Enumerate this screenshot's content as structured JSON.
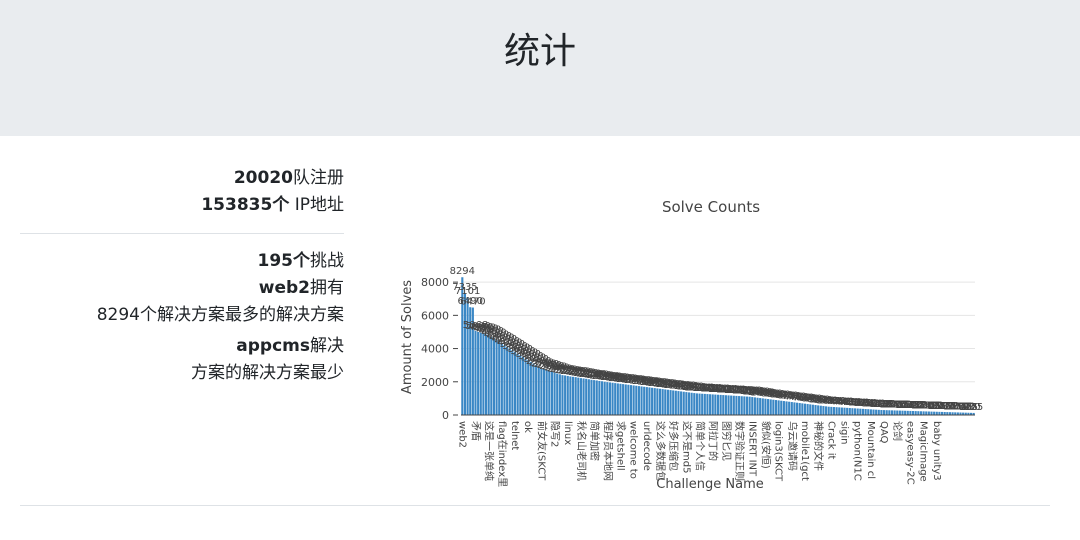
{
  "header": {
    "title": "统计"
  },
  "stats": {
    "teams": "20020",
    "teams_label": "队注册",
    "ips": "153835个",
    "ips_label": "IP地址",
    "challenges": "195个",
    "challenges_label": "挑战",
    "most": "web2",
    "most_label": "拥有",
    "most_detail": "8294个解决方案最多的解决方案",
    "least": "appcms",
    "least_label": "解决",
    "least_detail": "方案的解决方案最少"
  },
  "chart_data": {
    "type": "bar",
    "title": "Solve Counts",
    "ylabel": "Amount of Solves",
    "xlabel": "Challenge Name",
    "color": "#3a87c5",
    "ylim": [
      0,
      8730
    ],
    "yticks": [
      0,
      2000,
      4000,
      6000,
      8000
    ],
    "grid": true,
    "categories": [
      "web2",
      null,
      null,
      null,
      null,
      "矛盾",
      null,
      null,
      null,
      null,
      "这是一张单纯",
      null,
      null,
      null,
      null,
      "flag在index里",
      null,
      null,
      null,
      null,
      "telnet",
      null,
      null,
      null,
      null,
      "ok",
      null,
      null,
      null,
      null,
      "前女友(SKCT",
      null,
      null,
      null,
      null,
      "隐写2",
      null,
      null,
      null,
      null,
      "linux",
      null,
      null,
      null,
      null,
      "秋名山老司机",
      null,
      null,
      null,
      null,
      "简单加密",
      null,
      null,
      null,
      null,
      "程序员本地网",
      null,
      null,
      null,
      null,
      "求getshell",
      null,
      null,
      null,
      null,
      "welcome to",
      null,
      null,
      null,
      null,
      "urldecode",
      null,
      null,
      null,
      null,
      "这么多数据包",
      null,
      null,
      null,
      null,
      "好多压缩包",
      null,
      null,
      null,
      null,
      "这不是md5",
      null,
      null,
      null,
      null,
      "简单个人信",
      null,
      null,
      null,
      null,
      "阿拉丁的",
      null,
      null,
      null,
      null,
      "图穷匕见",
      null,
      null,
      null,
      null,
      "数字验证正则",
      null,
      null,
      null,
      null,
      "INSERT INT",
      null,
      null,
      null,
      null,
      "貌似(安恒)",
      null,
      null,
      null,
      null,
      "login3(SKCT",
      null,
      null,
      null,
      null,
      "乌云邀请码",
      null,
      null,
      null,
      null,
      "mobile1(gct",
      null,
      null,
      null,
      null,
      "神秘的文件",
      null,
      null,
      null,
      null,
      "Crack it",
      null,
      null,
      null,
      null,
      "sigin",
      null,
      null,
      null,
      null,
      "python(N1C",
      null,
      null,
      null,
      null,
      "Mountain cl",
      null,
      null,
      null,
      null,
      "QAQ",
      null,
      null,
      null,
      null,
      "论剑",
      null,
      null,
      null,
      null,
      "easyeasy-2C",
      null,
      null,
      null,
      null,
      "MagicImage",
      null,
      null,
      null,
      null,
      "baby unity3",
      null,
      null,
      null,
      null,
      null,
      null,
      null,
      null,
      null,
      null,
      null,
      null,
      null,
      null
    ],
    "values": [
      8294,
      7335,
      7101,
      6490,
      6470,
      5068,
      5000,
      4950,
      4900,
      4850,
      4800,
      4700,
      4600,
      4500,
      4400,
      4300,
      4200,
      4100,
      4000,
      3900,
      3800,
      3700,
      3600,
      3500,
      3400,
      3300,
      3200,
      3100,
      3000,
      2900,
      2800,
      2750,
      2700,
      2650,
      2600,
      2550,
      2500,
      2450,
      2400,
      2380,
      2350,
      2320,
      2300,
      2280,
      2250,
      2220,
      2200,
      2180,
      2150,
      2120,
      2100,
      2080,
      2050,
      2030,
      2000,
      1980,
      1960,
      1940,
      1920,
      1900,
      1880,
      1860,
      1840,
      1820,
      1800,
      1780,
      1760,
      1740,
      1720,
      1700,
      1680,
      1660,
      1640,
      1620,
      1600,
      1580,
      1560,
      1540,
      1520,
      1500,
      1480,
      1460,
      1440,
      1420,
      1400,
      1380,
      1360,
      1340,
      1320,
      1300,
      1290,
      1280,
      1270,
      1260,
      1250,
      1240,
      1230,
      1220,
      1210,
      1200,
      1190,
      1180,
      1170,
      1160,
      1150,
      1140,
      1130,
      1120,
      1110,
      1100,
      1080,
      1060,
      1040,
      1020,
      1000,
      980,
      960,
      940,
      920,
      900,
      880,
      860,
      840,
      820,
      800,
      780,
      760,
      740,
      720,
      700,
      680,
      660,
      640,
      620,
      600,
      580,
      560,
      540,
      520,
      500,
      490,
      480,
      470,
      460,
      450,
      440,
      430,
      420,
      410,
      400,
      390,
      380,
      370,
      360,
      350,
      340,
      330,
      320,
      310,
      300,
      295,
      290,
      285,
      280,
      275,
      270,
      265,
      260,
      255,
      250,
      245,
      240,
      235,
      230,
      225,
      220,
      215,
      210,
      205,
      200,
      195,
      190,
      185,
      180,
      175,
      170,
      165,
      160,
      155,
      150,
      145,
      140,
      135,
      130,
      125
    ]
  }
}
